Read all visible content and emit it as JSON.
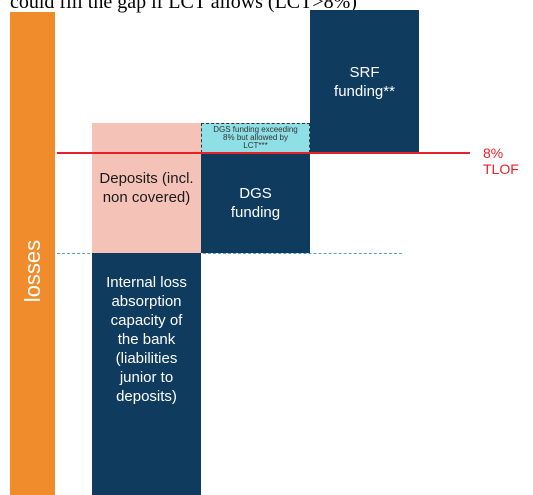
{
  "header": {
    "title": "could fill the gap if LCT allows (LCT>8%)"
  },
  "nodes": [
    {
      "label": "losses"
    },
    {
      "label": "Deposits (incl. non covered)"
    },
    {
      "label": "Internal loss absorption capacity of the bank (liabilities junior to deposits)"
    },
    {
      "label": "DGS funding exceeding 8% but allowed by LCT***"
    },
    {
      "label": "DGS funding"
    },
    {
      "label": "SRF funding**"
    }
  ],
  "threshold": {
    "label": "8% TLOF"
  }
}
